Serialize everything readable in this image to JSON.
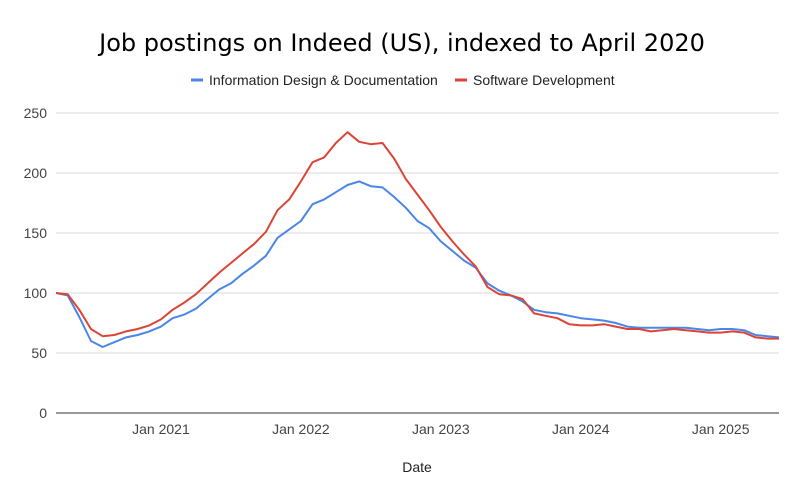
{
  "chart_data": {
    "type": "line",
    "title": "Job postings on Indeed (US), indexed to April 2020",
    "xlabel": "Date",
    "ylabel": "",
    "ylim": [
      0,
      250
    ],
    "yticks": [
      "0",
      "50",
      "100",
      "150",
      "200",
      "250"
    ],
    "xticks": [
      {
        "label": "Jan 2021",
        "date": "2021-01"
      },
      {
        "label": "Jan 2022",
        "date": "2022-01"
      },
      {
        "label": "Jan 2023",
        "date": "2023-01"
      },
      {
        "label": "Jan 2024",
        "date": "2024-01"
      },
      {
        "label": "Jan 2025",
        "date": "2025-01"
      }
    ],
    "grid": "horizontal",
    "legend": "top-center",
    "x": [
      "2020-04",
      "2020-05",
      "2020-06",
      "2020-07",
      "2020-08",
      "2020-09",
      "2020-10",
      "2020-11",
      "2020-12",
      "2021-01",
      "2021-02",
      "2021-03",
      "2021-04",
      "2021-05",
      "2021-06",
      "2021-07",
      "2021-08",
      "2021-09",
      "2021-10",
      "2021-11",
      "2021-12",
      "2022-01",
      "2022-02",
      "2022-03",
      "2022-04",
      "2022-05",
      "2022-06",
      "2022-07",
      "2022-08",
      "2022-09",
      "2022-10",
      "2022-11",
      "2022-12",
      "2023-01",
      "2023-02",
      "2023-03",
      "2023-04",
      "2023-05",
      "2023-06",
      "2023-07",
      "2023-08",
      "2023-09",
      "2023-10",
      "2023-11",
      "2023-12",
      "2024-01",
      "2024-02",
      "2024-03",
      "2024-04",
      "2024-05",
      "2024-06",
      "2024-07",
      "2024-08",
      "2024-09",
      "2024-10",
      "2024-11",
      "2024-12",
      "2025-01",
      "2025-02",
      "2025-03",
      "2025-04",
      "2025-05",
      "2025-06"
    ],
    "series": [
      {
        "name": "Information Design & Documentation",
        "color": "#4a86e8",
        "values": [
          100,
          98,
          80,
          60,
          55,
          59,
          63,
          65,
          68,
          72,
          79,
          82,
          87,
          95,
          103,
          108,
          116,
          123,
          131,
          146,
          153,
          160,
          174,
          178,
          184,
          190,
          193,
          189,
          188,
          180,
          171,
          160,
          154,
          143,
          135,
          127,
          121,
          108,
          102,
          98,
          93,
          86,
          84,
          83,
          81,
          79,
          78,
          77,
          75,
          72,
          71,
          71,
          71,
          71,
          71,
          70,
          69,
          70,
          70,
          69,
          65,
          64,
          63
        ]
      },
      {
        "name": "Software Development",
        "color": "#db4437",
        "values": [
          100,
          99,
          86,
          70,
          64,
          65,
          68,
          70,
          73,
          78,
          86,
          92,
          99,
          108,
          117,
          125,
          133,
          141,
          151,
          169,
          178,
          193,
          209,
          213,
          225,
          234,
          226,
          224,
          225,
          212,
          195,
          182,
          169,
          155,
          143,
          132,
          122,
          105,
          99,
          98,
          95,
          83,
          81,
          79,
          74,
          73,
          73,
          74,
          72,
          70,
          70,
          68,
          69,
          70,
          69,
          68,
          67,
          67,
          68,
          67,
          63,
          62,
          62
        ]
      }
    ]
  }
}
